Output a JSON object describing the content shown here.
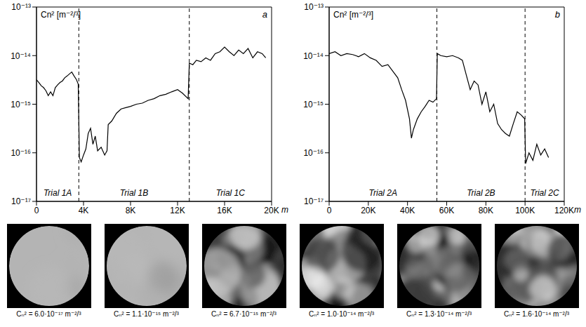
{
  "chart_data": [
    {
      "type": "line",
      "panel_label": "a",
      "ylabel": "Cn² [m⁻²/³]",
      "xlabel": "m",
      "log": "y",
      "grid": false,
      "color": "#000000",
      "xlim": [
        0,
        20000
      ],
      "xticks": [
        0,
        {
          "value": 4000,
          "label": "4K"
        },
        {
          "value": 8000,
          "label": "8K"
        },
        {
          "value": 12000,
          "label": "12K"
        },
        {
          "value": 16000,
          "label": "16K"
        },
        {
          "value": 20000,
          "label": "20K"
        }
      ],
      "ylim": [
        1e-17,
        1e-13
      ],
      "yticks": [
        {
          "value": 1e-17,
          "label": "10⁻¹⁷"
        },
        {
          "value": 1e-16,
          "label": "10⁻¹⁶"
        },
        {
          "value": 1e-15,
          "label": "10⁻¹⁵"
        },
        {
          "value": 1e-14,
          "label": "10⁻¹⁴"
        },
        {
          "value": 1e-13,
          "label": "10⁻¹³"
        }
      ],
      "boundaries": [
        3600,
        13000
      ],
      "segments": [
        "Trial 1A",
        "Trial 1B",
        "Trial 1C"
      ],
      "x": [
        0,
        200,
        400,
        600,
        800,
        1000,
        1200,
        1400,
        1600,
        1800,
        2000,
        2200,
        2400,
        2600,
        2800,
        3000,
        3200,
        3400,
        3550,
        3650,
        3800,
        4000,
        4200,
        4400,
        4600,
        4800,
        5000,
        5200,
        5500,
        5800,
        6000,
        6100,
        6400,
        6800,
        7200,
        7600,
        8000,
        8500,
        9000,
        9500,
        10000,
        10500,
        11000,
        11500,
        12000,
        12400,
        12900,
        13000,
        13300,
        13600,
        14000,
        14400,
        14800,
        15200,
        15600,
        16000,
        16400,
        16800,
        17200,
        17600,
        18000,
        18400,
        18800,
        19200,
        19500
      ],
      "values": [
        3.2e-15,
        2.8e-15,
        2.4e-15,
        2.2e-15,
        1.9e-15,
        1.5e-15,
        1.8e-15,
        1.5e-15,
        2.2e-15,
        2.5e-15,
        2.8e-15,
        3e-15,
        3.5e-15,
        3.8e-15,
        4.2e-15,
        4.6e-15,
        3.8e-15,
        3.2e-15,
        2.6e-15,
        8e-17,
        6.5e-17,
        9e-17,
        1.2e-16,
        2.5e-16,
        3.2e-16,
        1.5e-16,
        2.2e-16,
        1.1e-16,
        1.3e-16,
        9e-17,
        1.1e-16,
        3.8e-16,
        4.5e-16,
        6.5e-16,
        8e-16,
        8.5e-16,
        9e-16,
        1e-15,
        1.05e-15,
        1.2e-15,
        1.3e-15,
        1.5e-15,
        1.6e-15,
        1.8e-15,
        2e-15,
        1.7e-15,
        1.3e-15,
        7e-15,
        6.5e-15,
        8e-15,
        7.5e-15,
        9e-15,
        8e-15,
        1.1e-14,
        1.2e-14,
        1.5e-14,
        1.2e-14,
        1e-14,
        1.3e-14,
        1.1e-14,
        1.4e-14,
        9e-15,
        1.2e-14,
        1.1e-14,
        9e-15
      ]
    },
    {
      "type": "line",
      "panel_label": "b",
      "ylabel": "Cn² [m⁻²/³]",
      "xlabel": "m",
      "log": "y",
      "grid": false,
      "color": "#000000",
      "xlim": [
        0,
        120000
      ],
      "xticks": [
        0,
        {
          "value": 20000,
          "label": "20K"
        },
        {
          "value": 40000,
          "label": "40K"
        },
        {
          "value": 60000,
          "label": "60K"
        },
        {
          "value": 80000,
          "label": "80K"
        },
        {
          "value": 100000,
          "label": "100K"
        },
        {
          "value": 120000,
          "label": "120K"
        }
      ],
      "ylim": [
        1e-17,
        1e-13
      ],
      "yticks": [
        {
          "value": 1e-17,
          "label": "10⁻¹⁷"
        },
        {
          "value": 1e-16,
          "label": "10⁻¹⁶"
        },
        {
          "value": 1e-15,
          "label": "10⁻¹⁵"
        },
        {
          "value": 1e-14,
          "label": "10⁻¹⁴"
        },
        {
          "value": 1e-13,
          "label": "10⁻¹³"
        }
      ],
      "boundaries": [
        55000,
        100000
      ],
      "segments": [
        "Trial 2A",
        "Trial 2B",
        "Trial 2C"
      ],
      "x": [
        0,
        3000,
        6000,
        9000,
        12000,
        15000,
        18000,
        21000,
        24000,
        27000,
        30000,
        33000,
        35000,
        37000,
        39000,
        41000,
        42000,
        43000,
        45000,
        47000,
        49000,
        51000,
        53000,
        54800,
        55200,
        57000,
        60000,
        63000,
        66000,
        68000,
        70000,
        72000,
        74000,
        76000,
        78000,
        80000,
        82000,
        84000,
        86000,
        88000,
        90000,
        92000,
        94000,
        96000,
        98000,
        99800,
        100300,
        102000,
        104000,
        106000,
        108000,
        110000,
        112000
      ],
      "values": [
        1.1e-14,
        1.2e-14,
        1e-14,
        1.1e-14,
        1.05e-14,
        9.5e-15,
        1.1e-14,
        9e-15,
        8e-15,
        6e-15,
        6.5e-15,
        4.5e-15,
        3.5e-15,
        2e-15,
        1.2e-15,
        5e-16,
        2e-16,
        3e-16,
        5e-16,
        7e-16,
        9e-16,
        1.2e-15,
        1.1e-15,
        1.3e-15,
        1.1e-14,
        1e-14,
        9.5e-15,
        1e-14,
        9e-15,
        8e-15,
        4e-15,
        2e-15,
        3e-15,
        2.5e-15,
        1e-15,
        1.8e-15,
        7e-16,
        1e-15,
        4e-16,
        3e-16,
        2.5e-16,
        2.2e-16,
        4e-16,
        7e-16,
        6e-16,
        5e-16,
        6e-17,
        1e-16,
        7e-17,
        1.5e-16,
        9e-17,
        1.2e-16,
        8e-17
      ]
    }
  ],
  "images": [
    {
      "caption": "Cₙ² = 6.0·10⁻¹⁷ m⁻²/³"
    },
    {
      "caption": "Cₙ² = 1.1·10⁻¹⁵ m⁻²/³"
    },
    {
      "caption": "Cₙ² = 6.7·10⁻¹⁵ m⁻²/³"
    },
    {
      "caption": "Cₙ² = 1.0·10⁻¹⁴ m⁻²/³"
    },
    {
      "caption": "Cₙ² = 1.3·10⁻¹⁴ m⁻²/³"
    },
    {
      "caption": "Cₙ² = 1.6·10⁻¹⁴ m⁻²/³"
    }
  ]
}
